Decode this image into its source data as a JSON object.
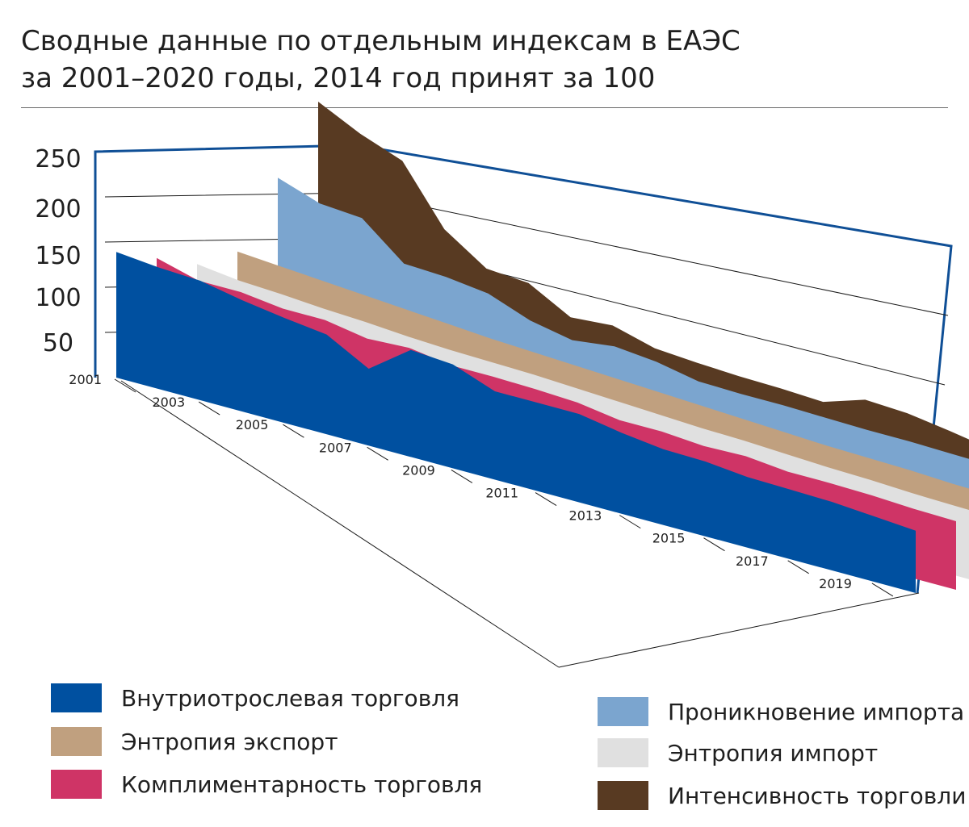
{
  "title": {
    "line1": "Сводные данные по отдельным индексам в ЕАЭС",
    "line2": "за 2001–2020 годы, 2014 год принят за 100"
  },
  "chart_data": {
    "type": "area",
    "projection": "3d",
    "x": [
      2001,
      2002,
      2003,
      2004,
      2005,
      2006,
      2007,
      2008,
      2009,
      2010,
      2011,
      2012,
      2013,
      2014,
      2015,
      2016,
      2017,
      2018,
      2019,
      2020
    ],
    "x_tick_labels": [
      "2001",
      "2003",
      "2005",
      "2007",
      "2009",
      "2011",
      "2013",
      "2015",
      "2017",
      "2019"
    ],
    "ylim": [
      0,
      250
    ],
    "y_ticks": [
      "250",
      "200",
      "150",
      "100",
      "50"
    ],
    "grid": true,
    "series": [
      {
        "name": "Внутриотраслевая торговля",
        "color": "#0050a0",
        "values": [
          121,
          117,
          115,
          107,
          101,
          96,
          74,
          103,
          100,
          85,
          85,
          85,
          78,
          73,
          72,
          68,
          67,
          66,
          63,
          60
        ]
      },
      {
        "name": "Комплиментарность торговли",
        "color": "#cf3466",
        "values": [
          112,
          101,
          101,
          96,
          96,
          89,
          91,
          85,
          85,
          84,
          82,
          76,
          76,
          73,
          74,
          70,
          70,
          69,
          67,
          66
        ]
      },
      {
        "name": "Энтропия импорт",
        "color": "#e0e0e0",
        "values": [
          103,
          98,
          96,
          93,
          91,
          88,
          86,
          85,
          84,
          82,
          80,
          78,
          76,
          75,
          73,
          71,
          70,
          68,
          67,
          66
        ]
      },
      {
        "name": "Энтропия экспорт",
        "color": "#c0a07f",
        "values": [
          112,
          109,
          106,
          103,
          100,
          97,
          94,
          92,
          90,
          88,
          86,
          84,
          82,
          80,
          78,
          77,
          76,
          74,
          73,
          72
        ]
      },
      {
        "name": "Проникновение импорта",
        "color": "#7ba5cf",
        "values": [
          180,
          166,
          163,
          130,
          128,
          123,
          108,
          100,
          105,
          101,
          93,
          92,
          92,
          91,
          90,
          90,
          89,
          88,
          87,
          86
        ]
      },
      {
        "name": "Интенсивность торговли",
        "color": "#583a22",
        "values": [
          250,
          230,
          215,
          160,
          133,
          130,
          108,
          111,
          100,
          97,
          95,
          94,
          92,
          105,
          103,
          97,
          90,
          88,
          86,
          85
        ]
      }
    ]
  },
  "legend": {
    "left": [
      {
        "label": "Внутриотрослевая торговля",
        "color": "#0050a0"
      },
      {
        "label": "Энтропия экспорт",
        "color": "#c0a07f"
      },
      {
        "label": "Комплиментарность торговля",
        "color": "#cf3466"
      }
    ],
    "right": [
      {
        "label": "Проникновение импорта",
        "color": "#7ba5cf"
      },
      {
        "label": "Энтропия импорт",
        "color": "#e0e0e0"
      },
      {
        "label": "Интенсивность торговли",
        "color": "#583a22"
      }
    ]
  },
  "frame_color": "#0f4f96"
}
